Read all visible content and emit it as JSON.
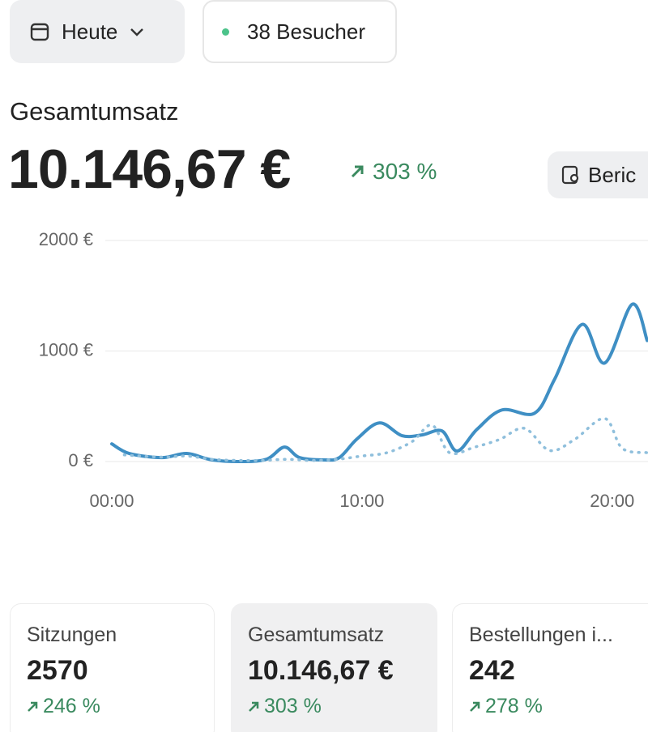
{
  "header": {
    "date_button": "Heute",
    "visitors": "38 Besucher"
  },
  "summary": {
    "title": "Gesamtumsatz",
    "value": "10.146,67 €",
    "change": "303 %",
    "report_button": "Beric"
  },
  "chart_data": {
    "type": "line",
    "x": [
      0,
      0.7,
      2,
      3,
      4,
      5.2,
      6.2,
      6.9,
      7.5,
      8.5,
      9.1,
      9.8,
      10.7,
      11.6,
      12.4,
      13.2,
      13.8,
      14.6,
      15.6,
      16.9,
      17.7,
      18.8,
      19.7,
      20.8,
      21.4
    ],
    "series": [
      {
        "color": "#3f8fc4",
        "style": "solid",
        "x": [
          0,
          0.7,
          2,
          3,
          4,
          5.2,
          6.2,
          6.9,
          7.5,
          8.5,
          9.1,
          9.8,
          10.7,
          11.6,
          12.4,
          13.2,
          13.8,
          14.6,
          15.6,
          16.9,
          17.7,
          18.8,
          19.7,
          20.8,
          21.4
        ],
        "values": [
          160,
          73,
          36,
          73,
          15,
          0,
          22,
          131,
          36,
          15,
          36,
          204,
          350,
          234,
          241,
          277,
          95,
          292,
          467,
          438,
          745,
          1241,
          891,
          1423,
          1095
        ]
      },
      {
        "color": "#8fbfdc",
        "style": "dotted",
        "x": [
          0.5,
          2,
          3,
          4,
          5,
          6,
          7,
          8,
          9,
          10,
          11,
          12,
          12.8,
          13.5,
          14.5,
          15.5,
          16.5,
          17.5,
          18.5,
          19.7,
          20.4,
          21.4
        ],
        "values": [
          60,
          40,
          50,
          20,
          10,
          10,
          20,
          10,
          20,
          50,
          80,
          180,
          330,
          80,
          130,
          200,
          300,
          100,
          200,
          390,
          120,
          80
        ]
      }
    ],
    "xlim": [
      0,
      21.4
    ],
    "xticks": [
      {
        "value": 0,
        "label": "00:00"
      },
      {
        "value": 10,
        "label": "10:00"
      },
      {
        "value": 20,
        "label": "20:00"
      }
    ],
    "ylim": [
      0,
      2000
    ],
    "yticks": [
      {
        "value": 0,
        "label": "0 €"
      },
      {
        "value": 1000,
        "label": "1000 €"
      },
      {
        "value": 2000,
        "label": "2000 €"
      }
    ],
    "grid": true
  },
  "cards": [
    {
      "label": "Sitzungen",
      "value": "2570",
      "change": "246 %"
    },
    {
      "label": "Gesamtumsatz",
      "value": "10.146,67 €",
      "change": "303 %"
    },
    {
      "label": "Bestellungen i...",
      "value": "242",
      "change": "278 %"
    }
  ]
}
